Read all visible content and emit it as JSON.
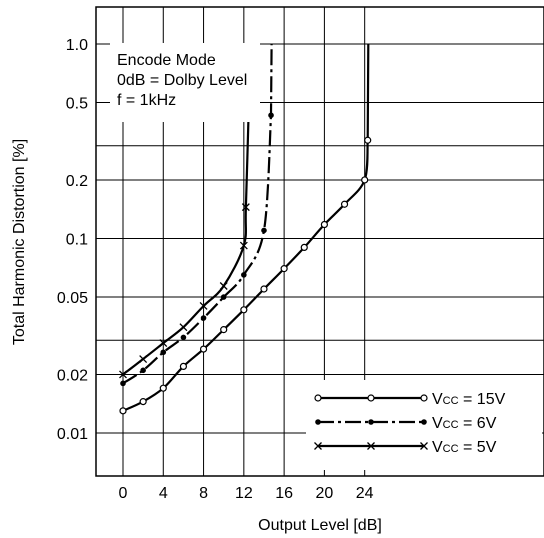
{
  "chart_data": {
    "type": "line",
    "title": "",
    "xlabel": "Output Level [dB]",
    "ylabel": "Total Harmonic Distortion [%]",
    "x_ticks": [
      0,
      4,
      8,
      12,
      16,
      20,
      24
    ],
    "x_tick_labels": [
      "0",
      "4",
      "8",
      "12",
      "16",
      "20",
      "24"
    ],
    "xlim": [
      -2,
      28
    ],
    "y_scale": "log",
    "y_ticks": [
      0.01,
      0.02,
      0.05,
      0.1,
      0.2,
      0.5,
      1.0
    ],
    "y_tick_labels": [
      "0.01",
      "0.02",
      "0.05",
      "0.1",
      "0.2",
      "0.5",
      "1.0"
    ],
    "ylim": [
      0.007,
      1.5
    ],
    "grid": true,
    "annotations": [
      "Encode Mode",
      "0dB = Dolby Level",
      "f = 1kHz"
    ],
    "legend_position": "bottom-right",
    "series": [
      {
        "label_main": "V",
        "label_sub": "CC",
        "label_value": " = 15V",
        "marker": "circle",
        "line_style": "solid",
        "x": [
          0,
          2,
          4,
          6,
          8,
          10,
          12,
          14,
          16,
          18,
          20,
          22,
          24,
          24.3
        ],
        "y": [
          0.013,
          0.0145,
          0.017,
          0.022,
          0.027,
          0.034,
          0.043,
          0.055,
          0.07,
          0.09,
          0.118,
          0.15,
          0.2,
          0.32
        ]
      },
      {
        "label_main": "V",
        "label_sub": "CC",
        "label_value": " = 6V",
        "marker": "dot",
        "line_style": "dash-dot",
        "x": [
          0,
          2,
          4,
          6,
          8,
          10,
          12,
          14,
          14.7
        ],
        "y": [
          0.018,
          0.021,
          0.026,
          0.031,
          0.039,
          0.05,
          0.065,
          0.11,
          0.43
        ]
      },
      {
        "label_main": "V",
        "label_sub": "CC",
        "label_value": " = 5V",
        "marker": "cross",
        "line_style": "solid",
        "x": [
          0,
          2,
          4,
          6,
          8,
          10,
          12,
          12.2,
          12.5
        ],
        "y": [
          0.02,
          0.024,
          0.029,
          0.035,
          0.045,
          0.057,
          0.092,
          0.145,
          0.5
        ]
      }
    ]
  }
}
